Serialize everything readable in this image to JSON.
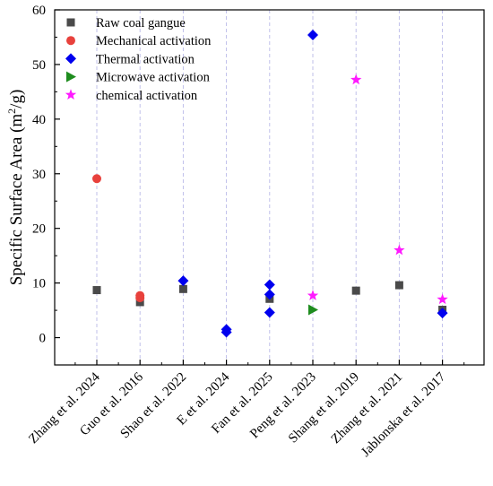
{
  "chart_data": {
    "type": "scatter",
    "title": "",
    "xlabel": "",
    "ylabel": "Specific Surface Area (m²/g)",
    "ylabel_parts": {
      "before": "Specific Surface Area (m",
      "sup": "2",
      "after": "/g)"
    },
    "ylim": [
      -5,
      60
    ],
    "yticks": [
      0,
      10,
      20,
      30,
      40,
      50,
      60
    ],
    "categories": [
      "Zhang et al. 2024",
      "Guo et al. 2016",
      "Shao et al. 2022",
      "E et al. 2024",
      "Fan et al. 2025",
      "Peng et al. 2023",
      "Shang et al. 2019",
      "Zhang et al. 2021",
      "Jablonska et al. 2017"
    ],
    "grid": "vertical dashed at categories",
    "legend_position": "top-left",
    "series": [
      {
        "name": "Raw coal gangue",
        "marker": "square",
        "color": "#4a4a4a",
        "points": [
          {
            "category": "Zhang et al. 2024",
            "y": 8.7
          },
          {
            "category": "Guo et al. 2016",
            "y": 6.5
          },
          {
            "category": "Shao et al. 2022",
            "y": 8.9
          },
          {
            "category": "Fan et al. 2025",
            "y": 7.1
          },
          {
            "category": "Shang et al. 2019",
            "y": 8.6
          },
          {
            "category": "Zhang et al. 2021",
            "y": 9.6
          },
          {
            "category": "Jablonska et al. 2017",
            "y": 5.1
          }
        ]
      },
      {
        "name": "Mechanical activation",
        "marker": "circle",
        "color": "#e8413c",
        "points": [
          {
            "category": "Zhang et al. 2024",
            "y": 29.1
          },
          {
            "category": "Guo et al. 2016",
            "y": 7.7
          },
          {
            "category": "Guo et al. 2016",
            "y": 7.3
          }
        ]
      },
      {
        "name": "Thermal activation",
        "marker": "diamond",
        "color": "#0000ee",
        "points": [
          {
            "category": "Shao et al. 2022",
            "y": 10.4
          },
          {
            "category": "E et al. 2024",
            "y": 1.5
          },
          {
            "category": "E et al. 2024",
            "y": 1.0
          },
          {
            "category": "Fan et al. 2025",
            "y": 9.7
          },
          {
            "category": "Fan et al. 2025",
            "y": 7.9
          },
          {
            "category": "Fan et al. 2025",
            "y": 4.6
          },
          {
            "category": "Peng et al. 2023",
            "y": 55.4
          },
          {
            "category": "Jablonska et al. 2017",
            "y": 4.5
          }
        ]
      },
      {
        "name": "Microwave activation",
        "marker": "triangle-right",
        "color": "#1e8c1e",
        "points": [
          {
            "category": "Peng et al. 2023",
            "y": 5.1
          }
        ]
      },
      {
        "name": "chemical activation",
        "marker": "star",
        "color": "#ff1aff",
        "points": [
          {
            "category": "Peng et al. 2023",
            "y": 7.7
          },
          {
            "category": "Shang et al. 2019",
            "y": 47.2
          },
          {
            "category": "Zhang et al. 2021",
            "y": 16.0
          },
          {
            "category": "Jablonska et al. 2017",
            "y": 7.0
          }
        ]
      }
    ]
  }
}
